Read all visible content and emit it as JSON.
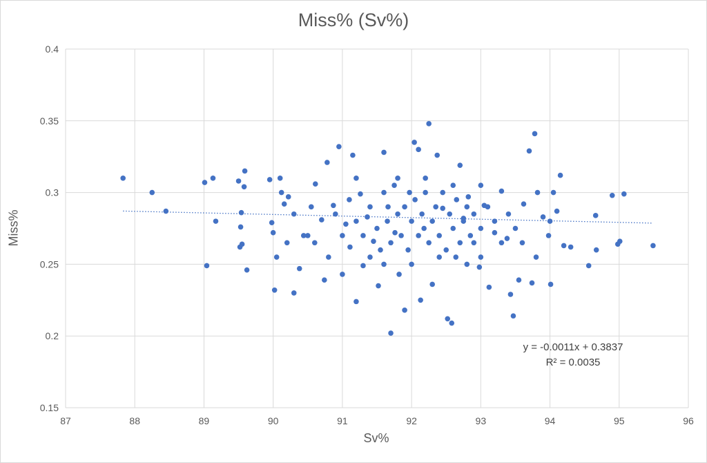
{
  "chart_data": {
    "type": "scatter",
    "title": "Miss% (Sv%)",
    "xlabel": "Sv%",
    "ylabel": "Miss%",
    "xlim": [
      87,
      96
    ],
    "ylim": [
      0.15,
      0.4
    ],
    "x_ticks": [
      "87",
      "88",
      "89",
      "90",
      "91",
      "92",
      "93",
      "94",
      "95",
      "96"
    ],
    "y_ticks": [
      "0.15",
      "0.2",
      "0.25",
      "0.3",
      "0.35",
      "0.4"
    ],
    "grid": true,
    "marker_color": "#4472c4",
    "trendline": {
      "equation": "y = -0.0011x + 0.3837",
      "r2": "R² = 0.0035",
      "slope": -0.0011,
      "intercept": 0.3837,
      "x_range": [
        87.83,
        95.49
      ]
    },
    "points": [
      [
        87.83,
        0.31
      ],
      [
        88.25,
        0.3
      ],
      [
        88.45,
        0.287
      ],
      [
        89.01,
        0.307
      ],
      [
        89.04,
        0.249
      ],
      [
        89.13,
        0.31
      ],
      [
        89.17,
        0.28
      ],
      [
        89.5,
        0.308
      ],
      [
        89.53,
        0.276
      ],
      [
        89.54,
        0.286
      ],
      [
        89.52,
        0.262
      ],
      [
        89.55,
        0.264
      ],
      [
        89.58,
        0.304
      ],
      [
        89.59,
        0.315
      ],
      [
        89.62,
        0.246
      ],
      [
        89.95,
        0.309
      ],
      [
        89.98,
        0.279
      ],
      [
        90.0,
        0.272
      ],
      [
        90.02,
        0.232
      ],
      [
        90.05,
        0.255
      ],
      [
        90.1,
        0.31
      ],
      [
        90.12,
        0.3
      ],
      [
        90.16,
        0.292
      ],
      [
        90.22,
        0.297
      ],
      [
        90.3,
        0.23
      ],
      [
        90.38,
        0.247
      ],
      [
        90.44,
        0.27
      ],
      [
        90.55,
        0.29
      ],
      [
        90.61,
        0.306
      ],
      [
        90.7,
        0.281
      ],
      [
        90.74,
        0.239
      ],
      [
        90.78,
        0.321
      ],
      [
        90.87,
        0.291
      ],
      [
        90.95,
        0.332
      ],
      [
        91.0,
        0.243
      ],
      [
        91.05,
        0.278
      ],
      [
        91.11,
        0.262
      ],
      [
        91.15,
        0.326
      ],
      [
        91.2,
        0.224
      ],
      [
        91.26,
        0.299
      ],
      [
        91.3,
        0.249
      ],
      [
        91.36,
        0.283
      ],
      [
        91.45,
        0.266
      ],
      [
        91.52,
        0.235
      ],
      [
        91.6,
        0.328
      ],
      [
        91.66,
        0.29
      ],
      [
        91.7,
        0.202
      ],
      [
        91.76,
        0.272
      ],
      [
        91.82,
        0.243
      ],
      [
        91.9,
        0.218
      ],
      [
        91.97,
        0.3
      ],
      [
        92.04,
        0.335
      ],
      [
        92.1,
        0.33
      ],
      [
        92.13,
        0.225
      ],
      [
        92.18,
        0.275
      ],
      [
        92.25,
        0.348
      ],
      [
        92.3,
        0.236
      ],
      [
        92.37,
        0.326
      ],
      [
        92.45,
        0.289
      ],
      [
        92.52,
        0.212
      ],
      [
        92.58,
        0.209
      ],
      [
        92.64,
        0.255
      ],
      [
        92.7,
        0.319
      ],
      [
        92.75,
        0.282
      ],
      [
        92.82,
        0.297
      ],
      [
        92.9,
        0.265
      ],
      [
        92.98,
        0.248
      ],
      [
        93.05,
        0.291
      ],
      [
        93.12,
        0.234
      ],
      [
        93.2,
        0.272
      ],
      [
        93.3,
        0.301
      ],
      [
        93.38,
        0.268
      ],
      [
        93.43,
        0.229
      ],
      [
        93.47,
        0.214
      ],
      [
        93.55,
        0.239
      ],
      [
        93.62,
        0.292
      ],
      [
        93.7,
        0.329
      ],
      [
        93.74,
        0.237
      ],
      [
        93.78,
        0.341
      ],
      [
        93.82,
        0.3
      ],
      [
        93.9,
        0.283
      ],
      [
        93.98,
        0.27
      ],
      [
        94.01,
        0.236
      ],
      [
        94.05,
        0.3
      ],
      [
        94.1,
        0.287
      ],
      [
        94.15,
        0.312
      ],
      [
        94.2,
        0.263
      ],
      [
        94.3,
        0.262
      ],
      [
        94.56,
        0.249
      ],
      [
        94.66,
        0.284
      ],
      [
        94.67,
        0.26
      ],
      [
        94.9,
        0.298
      ],
      [
        94.98,
        0.264
      ],
      [
        95.01,
        0.266
      ],
      [
        95.07,
        0.299
      ],
      [
        95.49,
        0.263
      ],
      [
        90.5,
        0.27
      ],
      [
        90.6,
        0.265
      ],
      [
        90.9,
        0.285
      ],
      [
        91.0,
        0.27
      ],
      [
        91.1,
        0.295
      ],
      [
        91.2,
        0.28
      ],
      [
        91.3,
        0.27
      ],
      [
        91.4,
        0.29
      ],
      [
        91.5,
        0.275
      ],
      [
        91.55,
        0.26
      ],
      [
        91.6,
        0.3
      ],
      [
        91.65,
        0.28
      ],
      [
        91.7,
        0.265
      ],
      [
        91.75,
        0.305
      ],
      [
        91.8,
        0.285
      ],
      [
        91.85,
        0.27
      ],
      [
        91.9,
        0.29
      ],
      [
        91.95,
        0.26
      ],
      [
        92.0,
        0.28
      ],
      [
        92.05,
        0.295
      ],
      [
        92.1,
        0.27
      ],
      [
        92.15,
        0.285
      ],
      [
        92.2,
        0.3
      ],
      [
        92.25,
        0.265
      ],
      [
        92.3,
        0.28
      ],
      [
        92.35,
        0.29
      ],
      [
        92.4,
        0.27
      ],
      [
        92.45,
        0.3
      ],
      [
        92.5,
        0.26
      ],
      [
        92.55,
        0.285
      ],
      [
        92.6,
        0.275
      ],
      [
        92.65,
        0.295
      ],
      [
        92.7,
        0.265
      ],
      [
        92.75,
        0.28
      ],
      [
        92.8,
        0.29
      ],
      [
        92.85,
        0.27
      ],
      [
        92.9,
        0.285
      ],
      [
        93.0,
        0.275
      ],
      [
        93.1,
        0.29
      ],
      [
        93.2,
        0.28
      ],
      [
        93.3,
        0.265
      ],
      [
        93.4,
        0.285
      ],
      [
        93.5,
        0.275
      ],
      [
        93.6,
        0.265
      ],
      [
        91.4,
        0.255
      ],
      [
        91.6,
        0.25
      ],
      [
        92.0,
        0.25
      ],
      [
        92.4,
        0.255
      ],
      [
        92.8,
        0.25
      ],
      [
        93.0,
        0.255
      ],
      [
        91.2,
        0.31
      ],
      [
        91.8,
        0.31
      ],
      [
        92.2,
        0.31
      ],
      [
        92.6,
        0.305
      ],
      [
        93.0,
        0.305
      ],
      [
        90.3,
        0.285
      ],
      [
        90.2,
        0.265
      ],
      [
        90.8,
        0.255
      ],
      [
        93.8,
        0.255
      ],
      [
        94.0,
        0.28
      ]
    ]
  }
}
